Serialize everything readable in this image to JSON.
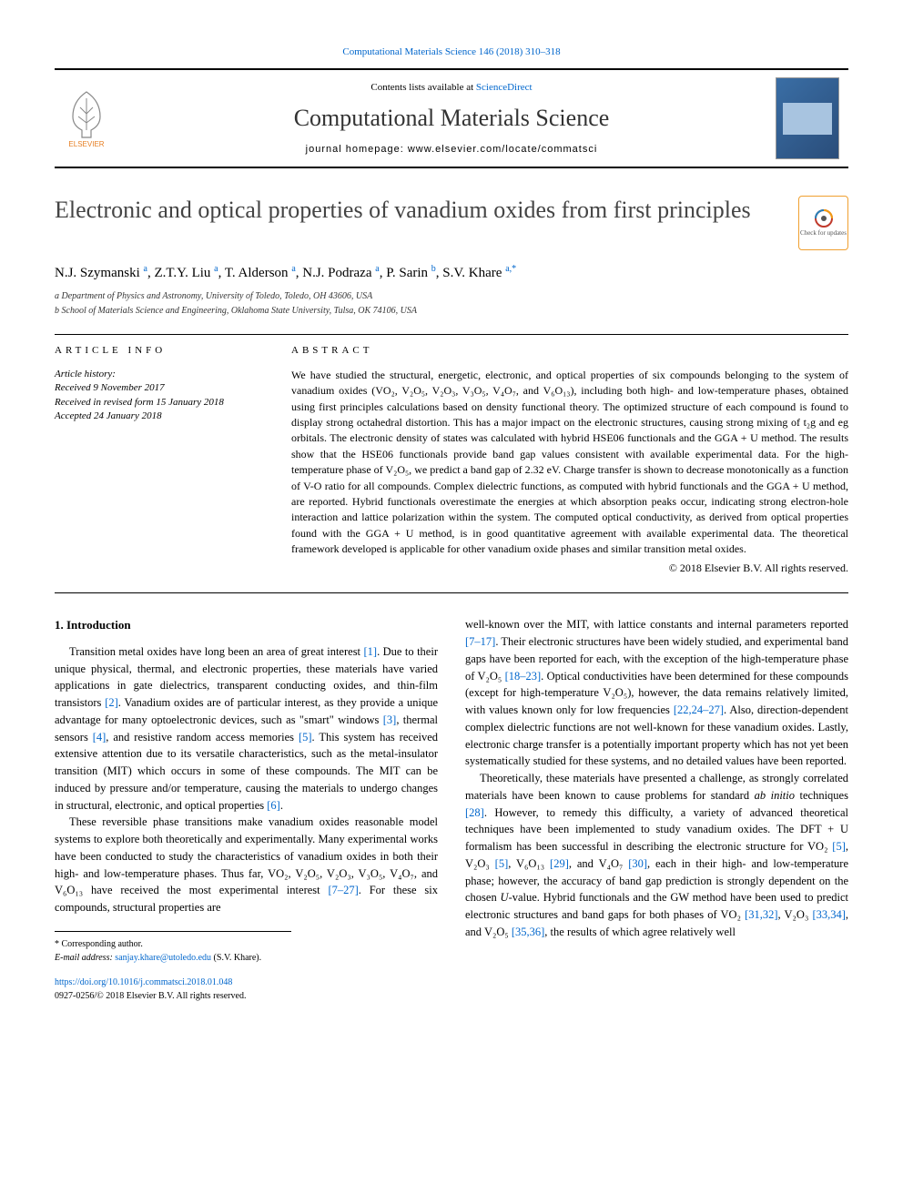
{
  "header": {
    "top_link": "Computational Materials Science 146 (2018) 310–318",
    "contents_line_prefix": "Contents lists available at ",
    "contents_link": "ScienceDirect",
    "journal_name": "Computational Materials Science",
    "homepage_prefix": "journal homepage: ",
    "homepage_url": "www.elsevier.com/locate/commatsci",
    "publisher_label": "ELSEVIER"
  },
  "title": "Electronic and optical properties of vanadium oxides from first principles",
  "updates_badge": "Check for updates",
  "authors_html": "N.J. Szymanski <sup>a</sup>, Z.T.Y. Liu <sup>a</sup>, T. Alderson <sup>a</sup>, N.J. Podraza <sup>a</sup>, P. Sarin <sup>b</sup>, S.V. Khare <sup>a,*</sup>",
  "affiliations": [
    "a Department of Physics and Astronomy, University of Toledo, Toledo, OH 43606, USA",
    "b School of Materials Science and Engineering, Oklahoma State University, Tulsa, OK 74106, USA"
  ],
  "info_label": "ARTICLE INFO",
  "abstract_label": "ABSTRACT",
  "history": {
    "heading": "Article history:",
    "received": "Received 9 November 2017",
    "revised": "Received in revised form 15 January 2018",
    "accepted": "Accepted 24 January 2018"
  },
  "abstract": "We have studied the structural, energetic, electronic, and optical properties of six compounds belonging to the system of vanadium oxides (VO₂, V₂O₅, V₂O₃, V₃O₅, V₄O₇, and V₆O₁₃), including both high- and low-temperature phases, obtained using first principles calculations based on density functional theory. The optimized structure of each compound is found to display strong octahedral distortion. This has a major impact on the electronic structures, causing strong mixing of t₂g and eg orbitals. The electronic density of states was calculated with hybrid HSE06 functionals and the GGA + U method. The results show that the HSE06 functionals provide band gap values consistent with available experimental data. For the high-temperature phase of V₂O₅, we predict a band gap of 2.32 eV. Charge transfer is shown to decrease monotonically as a function of V-O ratio for all compounds. Complex dielectric functions, as computed with hybrid functionals and the GGA + U method, are reported. Hybrid functionals overestimate the energies at which absorption peaks occur, indicating strong electron-hole interaction and lattice polarization within the system. The computed optical conductivity, as derived from optical properties found with the GGA + U method, is in good quantitative agreement with available experimental data. The theoretical framework developed is applicable for other vanadium oxide phases and similar transition metal oxides.",
  "copyright": "© 2018 Elsevier B.V. All rights reserved.",
  "section_heading": "1. Introduction",
  "body": {
    "left": [
      "Transition metal oxides have long been an area of great interest <span class='cite'>[1]</span>. Due to their unique physical, thermal, and electronic properties, these materials have varied applications in gate dielectrics, transparent conducting oxides, and thin-film transistors <span class='cite'>[2]</span>. Vanadium oxides are of particular interest, as they provide a unique advantage for many optoelectronic devices, such as \"smart\" windows <span class='cite'>[3]</span>, thermal sensors <span class='cite'>[4]</span>, and resistive random access memories <span class='cite'>[5]</span>. This system has received extensive attention due to its versatile characteristics, such as the metal-insulator transition (MIT) which occurs in some of these compounds. The MIT can be induced by pressure and/or temperature, causing the materials to undergo changes in structural, electronic, and optical properties <span class='cite'>[6]</span>.",
      "These reversible phase transitions make vanadium oxides reasonable model systems to explore both theoretically and experimentally. Many experimental works have been conducted to study the characteristics of vanadium oxides in both their high- and low-temperature phases. Thus far, VO₂, V₂O₅, V₂O₃, V₃O₅, V₄O₇, and V₆O₁₃ have received the most experimental interest <span class='cite'>[7–27]</span>. For these six compounds, structural properties are"
    ],
    "right": [
      "well-known over the MIT, with lattice constants and internal parameters reported <span class='cite'>[7–17]</span>. Their electronic structures have been widely studied, and experimental band gaps have been reported for each, with the exception of the high-temperature phase of V₂O₅ <span class='cite'>[18–23]</span>. Optical conductivities have been determined for these compounds (except for high-temperature V₂O₅), however, the data remains relatively limited, with values known only for low frequencies <span class='cite'>[22,24–27]</span>. Also, direction-dependent complex dielectric functions are not well-known for these vanadium oxides. Lastly, electronic charge transfer is a potentially important property which has not yet been systematically studied for these systems, and no detailed values have been reported.",
      "Theoretically, these materials have presented a challenge, as strongly correlated materials have been known to cause problems for standard <i>ab initio</i> techniques <span class='cite'>[28]</span>. However, to remedy this difficulty, a variety of advanced theoretical techniques have been implemented to study vanadium oxides. The DFT + U formalism has been successful in describing the electronic structure for VO₂ <span class='cite'>[5]</span>, V₂O₃ <span class='cite'>[5]</span>, V₆O₁₃ <span class='cite'>[29]</span>, and V₄O₇ <span class='cite'>[30]</span>, each in their high- and low-temperature phase; however, the accuracy of band gap prediction is strongly dependent on the chosen <i>U</i>-value. Hybrid functionals and the GW method have been used to predict electronic structures and band gaps for both phases of VO₂ <span class='cite'>[31,32]</span>, V₂O₃ <span class='cite'>[33,34]</span>, and V₂O₅ <span class='cite'>[35,36]</span>, the results of which agree relatively well"
    ]
  },
  "footnotes": {
    "corresponding": "* Corresponding author.",
    "email_label": "E-mail address: ",
    "email": "sanjay.khare@utoledo.edu",
    "email_name": " (S.V. Khare)."
  },
  "doi": {
    "url": "https://doi.org/10.1016/j.commatsci.2018.01.048",
    "issn_line": "0927-0256/© 2018 Elsevier B.V. All rights reserved."
  },
  "colors": {
    "link": "#0066cc",
    "text": "#000000",
    "title_text": "#444444",
    "badge_border": "#f0a030"
  }
}
